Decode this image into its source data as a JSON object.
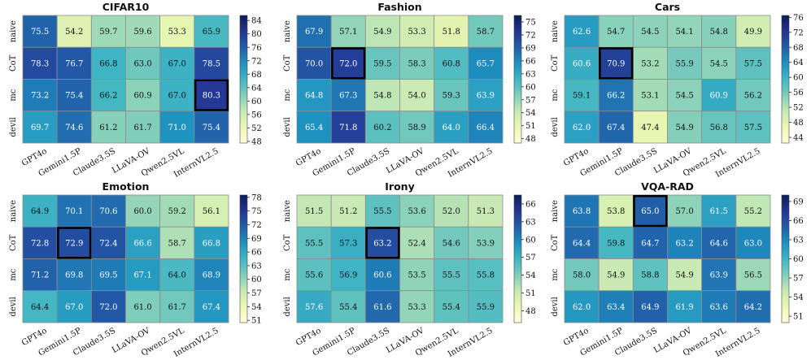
{
  "chart_data": [
    {
      "type": "heatmap",
      "title": "CIFAR10",
      "rows": [
        "naive",
        "CoT",
        "mc",
        "devil"
      ],
      "columns": [
        "GPT4o",
        "Gemini1.5P",
        "Claude3.5S",
        "LLaVA-OV",
        "Qwen2.5VL",
        "InternVL2.5"
      ],
      "values": [
        [
          "75.5",
          "54.2",
          "59.7",
          "59.6",
          "53.3",
          "65.9"
        ],
        [
          "78.3",
          "76.7",
          "66.8",
          "63.0",
          "67.0",
          "78.5"
        ],
        [
          "73.2",
          "75.4",
          "66.2",
          "60.9",
          "67.0",
          "80.3"
        ],
        [
          "69.7",
          "74.6",
          "61.2",
          "61.7",
          "71.0",
          "75.4"
        ]
      ],
      "highlight": [
        2,
        5
      ],
      "colorbar": {
        "min": 47.5,
        "max": 85.5,
        "ticks": [
          "48",
          "52",
          "56",
          "60",
          "64",
          "68",
          "72",
          "76",
          "80",
          "84"
        ]
      }
    },
    {
      "type": "heatmap",
      "title": "Fashion",
      "rows": [
        "naive",
        "CoT",
        "mc",
        "devil"
      ],
      "columns": [
        "GPT4o",
        "Gemini1.5P",
        "Claude3.5S",
        "LLaVA-OV",
        "Qwen2.5VL",
        "InternVL2.5"
      ],
      "values": [
        [
          "67.9",
          "57.1",
          "54.9",
          "53.3",
          "51.8",
          "58.7"
        ],
        [
          "70.0",
          "72.0",
          "59.5",
          "58.3",
          "60.8",
          "65.7"
        ],
        [
          "64.8",
          "67.3",
          "54.8",
          "54.0",
          "59.3",
          "63.9"
        ],
        [
          "65.4",
          "71.8",
          "60.2",
          "58.9",
          "64.0",
          "66.4"
        ]
      ],
      "highlight": [
        1,
        1
      ],
      "colorbar": {
        "min": 47.0,
        "max": 76.5,
        "ticks": [
          "48",
          "51",
          "54",
          "57",
          "60",
          "63",
          "66",
          "69",
          "72",
          "75"
        ]
      }
    },
    {
      "type": "heatmap",
      "title": "Cars",
      "rows": [
        "naive",
        "CoT",
        "mc",
        "devil"
      ],
      "columns": [
        "GPT4o",
        "Gemini1.5P",
        "Claude3.5S",
        "LLaVA-OV",
        "Qwen2.5VL",
        "InternVL2.5"
      ],
      "values": [
        [
          "62.6",
          "54.7",
          "54.5",
          "54.1",
          "54.8",
          "49.9"
        ],
        [
          "60.6",
          "70.9",
          "53.2",
          "55.9",
          "54.5",
          "57.5"
        ],
        [
          "59.1",
          "66.2",
          "53.1",
          "54.5",
          "60.9",
          "56.2"
        ],
        [
          "62.0",
          "67.4",
          "47.4",
          "54.9",
          "56.8",
          "57.5"
        ]
      ],
      "highlight": [
        1,
        1
      ],
      "colorbar": {
        "min": 42.5,
        "max": 76.5,
        "ticks": [
          "44",
          "48",
          "52",
          "56",
          "60",
          "64",
          "68",
          "72",
          "76"
        ]
      }
    },
    {
      "type": "heatmap",
      "title": "Emotion",
      "rows": [
        "naive",
        "CoT",
        "mc",
        "devil"
      ],
      "columns": [
        "GPT4o",
        "Gemini1.5P",
        "Claude3.5S",
        "LLaVA-OV",
        "Qwen2.5VL",
        "InternVL2.5"
      ],
      "values": [
        [
          "64.9",
          "70.1",
          "70.6",
          "60.0",
          "59.2",
          "56.1"
        ],
        [
          "72.8",
          "72.9",
          "72.4",
          "66.6",
          "58.7",
          "66.8"
        ],
        [
          "71.2",
          "69.8",
          "69.5",
          "67.1",
          "64.0",
          "68.9"
        ],
        [
          "64.4",
          "67.0",
          "72.0",
          "61.0",
          "61.7",
          "67.4"
        ]
      ],
      "highlight": [
        1,
        1
      ],
      "colorbar": {
        "min": 50.5,
        "max": 78.5,
        "ticks": [
          "51",
          "54",
          "57",
          "60",
          "63",
          "66",
          "69",
          "72",
          "75",
          "78"
        ]
      }
    },
    {
      "type": "heatmap",
      "title": "Irony",
      "rows": [
        "naive",
        "CoT",
        "mc",
        "devil"
      ],
      "columns": [
        "GPT4o",
        "Gemini1.5P",
        "Claude3.5S",
        "LLaVA-OV",
        "Qwen2.5VL",
        "InternVL2.5"
      ],
      "values": [
        [
          "51.5",
          "51.2",
          "55.5",
          "53.6",
          "52.0",
          "51.3"
        ],
        [
          "55.5",
          "57.3",
          "63.2",
          "52.4",
          "54.6",
          "53.9"
        ],
        [
          "55.6",
          "56.9",
          "60.6",
          "53.5",
          "55.5",
          "55.8"
        ],
        [
          "57.6",
          "55.4",
          "61.6",
          "53.3",
          "55.4",
          "55.9"
        ]
      ],
      "highlight": [
        1,
        2
      ],
      "colorbar": {
        "min": 46.0,
        "max": 67.5,
        "ticks": [
          "48",
          "51",
          "54",
          "57",
          "60",
          "63",
          "66"
        ]
      }
    },
    {
      "type": "heatmap",
      "title": "VQA-RAD",
      "rows": [
        "naive",
        "CoT",
        "mc",
        "devil"
      ],
      "columns": [
        "GPT4o",
        "Gemini1.5P",
        "Claude3.5S",
        "LLaVA-OV",
        "Qwen2.5VL",
        "InternVL2.5"
      ],
      "values": [
        [
          "63.8",
          "53.8",
          "65.0",
          "57.0",
          "61.5",
          "55.2"
        ],
        [
          "64.4",
          "59.8",
          "64.7",
          "63.2",
          "64.6",
          "63.0"
        ],
        [
          "58.0",
          "54.9",
          "58.8",
          "54.9",
          "63.9",
          "56.5"
        ],
        [
          "62.0",
          "63.4",
          "64.9",
          "61.9",
          "63.6",
          "64.2"
        ]
      ],
      "highlight": [
        0,
        2
      ],
      "colorbar": {
        "min": 50.0,
        "max": 70.0,
        "ticks": [
          "51",
          "54",
          "57",
          "60",
          "63",
          "66",
          "69"
        ]
      }
    }
  ]
}
